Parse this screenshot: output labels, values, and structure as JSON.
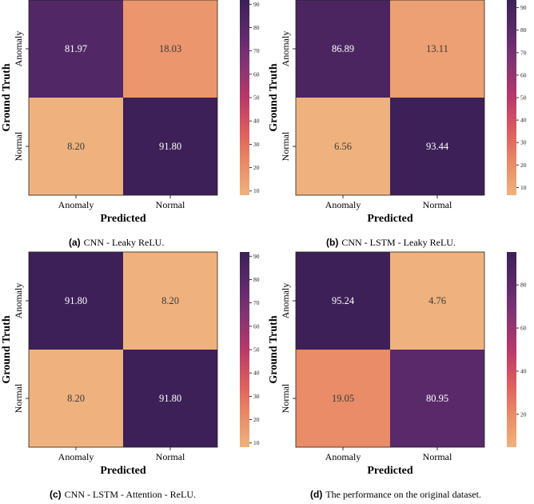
{
  "colors": {
    "scale": [
      "#efb27e",
      "#e98a66",
      "#dc5b5e",
      "#b8386a",
      "#853573",
      "#5b2a6b",
      "#3d2057"
    ]
  },
  "chart_data": [
    {
      "type": "heatmap",
      "tag": "(a)",
      "caption": "CNN - Leaky ReLU.",
      "xlabel": "Predicted",
      "ylabel": "Ground Truth",
      "x_categories": [
        "Anomaly",
        "Normal"
      ],
      "y_categories": [
        "Anomaly",
        "Normal"
      ],
      "values": [
        [
          81.97,
          18.03
        ],
        [
          8.2,
          91.8
        ]
      ],
      "cell_labels": [
        [
          "81.97",
          "18.03"
        ],
        [
          "8.20",
          "91.80"
        ]
      ],
      "colorbar": {
        "min": 8.2,
        "max": 91.8,
        "ticks": [
          "10",
          "20",
          "30",
          "40",
          "50",
          "60",
          "70",
          "80",
          "90"
        ]
      }
    },
    {
      "type": "heatmap",
      "tag": "(b)",
      "caption": "CNN - LSTM - Leaky ReLU.",
      "xlabel": "Predicted",
      "ylabel": "Ground Truth",
      "x_categories": [
        "Anomaly",
        "Normal"
      ],
      "y_categories": [
        "Anomaly",
        "Normal"
      ],
      "values": [
        [
          86.89,
          13.11
        ],
        [
          6.56,
          93.44
        ]
      ],
      "cell_labels": [
        [
          "86.89",
          "13.11"
        ],
        [
          "6.56",
          "93.44"
        ]
      ],
      "colorbar": {
        "min": 6.56,
        "max": 93.44,
        "ticks": [
          "10",
          "20",
          "30",
          "40",
          "50",
          "60",
          "70",
          "80",
          "90"
        ]
      }
    },
    {
      "type": "heatmap",
      "tag": "(c)",
      "caption": "CNN - LSTM - Attention - ReLU.",
      "xlabel": "Predicted",
      "ylabel": "Ground Truth",
      "x_categories": [
        "Anomaly",
        "Normal"
      ],
      "y_categories": [
        "Anomaly",
        "Normal"
      ],
      "values": [
        [
          91.8,
          8.2
        ],
        [
          8.2,
          91.8
        ]
      ],
      "cell_labels": [
        [
          "91.80",
          "8.20"
        ],
        [
          "8.20",
          "91.80"
        ]
      ],
      "colorbar": {
        "min": 8.2,
        "max": 91.8,
        "ticks": [
          "10",
          "20",
          "30",
          "40",
          "50",
          "60",
          "70",
          "80",
          "90"
        ]
      }
    },
    {
      "type": "heatmap",
      "tag": "(d)",
      "caption": "The performance on the original dataset.",
      "xlabel": "Predicted",
      "ylabel": "Ground Truth",
      "x_categories": [
        "Anomaly",
        "Normal"
      ],
      "y_categories": [
        "Anomaly",
        "Normal"
      ],
      "values": [
        [
          95.24,
          4.76
        ],
        [
          19.05,
          80.95
        ]
      ],
      "cell_labels": [
        [
          "95.24",
          "4.76"
        ],
        [
          "19.05",
          "80.95"
        ]
      ],
      "colorbar": {
        "min": 4.76,
        "max": 95.24,
        "ticks": [
          "20",
          "40",
          "60",
          "80"
        ]
      }
    }
  ]
}
